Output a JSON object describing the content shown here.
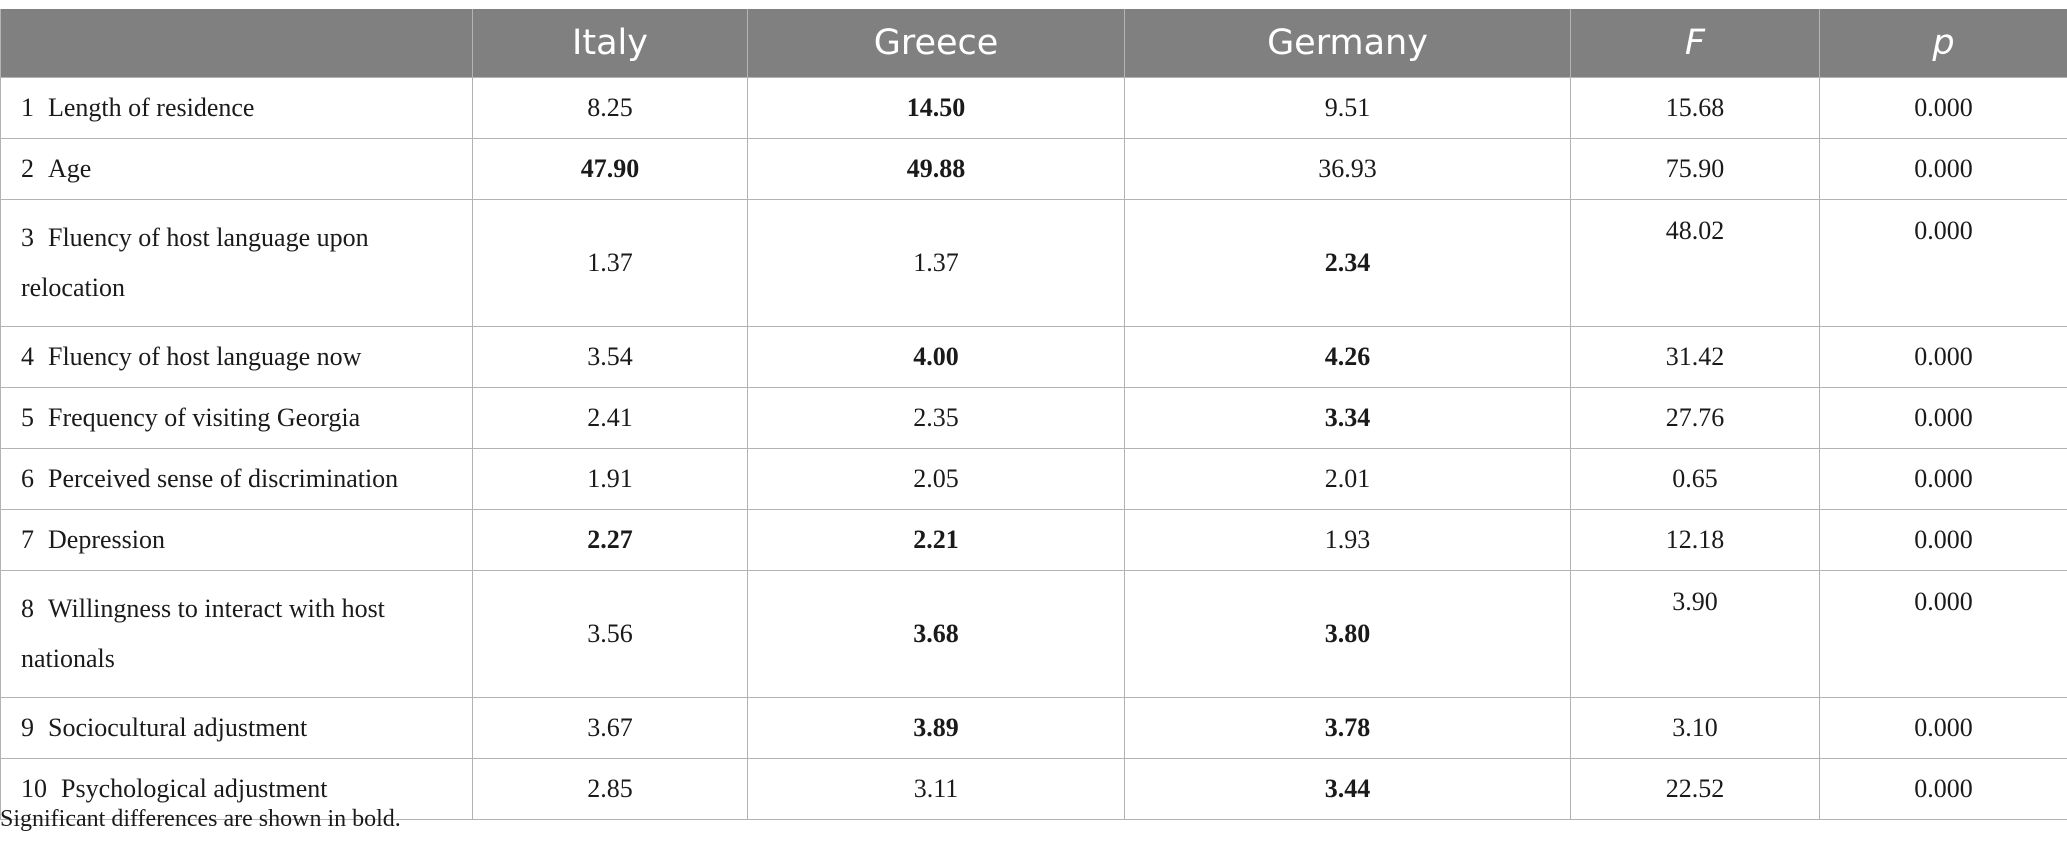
{
  "table": {
    "headers": [
      "",
      "Italy",
      "Greece",
      "Germany",
      "F",
      "p"
    ],
    "rows": [
      {
        "num": "1",
        "label": "Length of residence",
        "italy": "8.25",
        "greece": "14.50",
        "germany": "9.51",
        "f": "15.68",
        "p": "0.000",
        "bold": [
          "greece"
        ]
      },
      {
        "num": "2",
        "label": "Age",
        "italy": "47.90",
        "greece": "49.88",
        "germany": "36.93",
        "f": "75.90",
        "p": "0.000",
        "bold": [
          "italy",
          "greece"
        ]
      },
      {
        "num": "3",
        "label": "Fluency of host language upon relocation",
        "italy": "1.37",
        "greece": "1.37",
        "germany": "2.34",
        "f": "48.02",
        "p": "0.000",
        "bold": [
          "germany"
        ]
      },
      {
        "num": "4",
        "label": "Fluency of host language now",
        "italy": "3.54",
        "greece": "4.00",
        "germany": "4.26",
        "f": "31.42",
        "p": "0.000",
        "bold": [
          "greece",
          "germany"
        ]
      },
      {
        "num": "5",
        "label": "Frequency of visiting Georgia",
        "italy": "2.41",
        "greece": "2.35",
        "germany": "3.34",
        "f": "27.76",
        "p": "0.000",
        "bold": [
          "germany"
        ]
      },
      {
        "num": "6",
        "label": "Perceived sense of discrimination",
        "italy": "1.91",
        "greece": "2.05",
        "germany": "2.01",
        "f": "0.65",
        "p": "0.000",
        "bold": []
      },
      {
        "num": "7",
        "label": "Depression",
        "italy": "2.27",
        "greece": "2.21",
        "germany": "1.93",
        "f": "12.18",
        "p": "0.000",
        "bold": [
          "italy",
          "greece"
        ]
      },
      {
        "num": "8",
        "label": "Willingness to interact with host nationals",
        "italy": "3.56",
        "greece": "3.68",
        "germany": "3.80",
        "f": "3.90",
        "p": "0.000",
        "bold": [
          "greece",
          "germany"
        ]
      },
      {
        "num": "9",
        "label": "Sociocultural adjustment",
        "italy": "3.67",
        "greece": "3.89",
        "germany": "3.78",
        "f": "3.10",
        "p": "0.000",
        "bold": [
          "greece",
          "germany"
        ]
      },
      {
        "num": "10",
        "label": "Psychological adjustment",
        "italy": "2.85",
        "greece": "3.11",
        "germany": "3.44",
        "f": "22.52",
        "p": "0.000",
        "bold": [
          "germany"
        ]
      }
    ]
  },
  "footnote": "Significant differences are shown in bold.",
  "colors": {
    "header_bg": "#808080",
    "header_text": "#ffffff",
    "border": "#b3b3b3"
  }
}
